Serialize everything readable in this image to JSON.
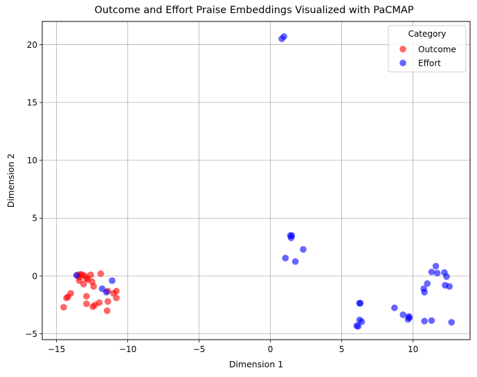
{
  "chart_data": {
    "type": "scatter",
    "title": "Outcome and Effort Praise Embeddings Visualized with PaCMAP",
    "xlabel": "Dimension 1",
    "ylabel": "Dimension 2",
    "xlim": [
      -16,
      14
    ],
    "ylim": [
      -5.5,
      22
    ],
    "xticks": [
      -15,
      -10,
      -5,
      0,
      5,
      10
    ],
    "yticks": [
      -5,
      0,
      5,
      10,
      15,
      20
    ],
    "grid": true,
    "legend": {
      "title": "Category",
      "placement": "top-right"
    },
    "series": [
      {
        "name": "Outcome",
        "color": "#ff0000",
        "points": [
          [
            -13.5,
            0.1
          ],
          [
            -13.3,
            0.15
          ],
          [
            -13.2,
            0.1
          ],
          [
            -13.4,
            -0.1
          ],
          [
            -13.0,
            0.0
          ],
          [
            -12.6,
            0.1
          ],
          [
            -12.9,
            -0.2
          ],
          [
            -11.9,
            0.2
          ],
          [
            -13.4,
            -0.4
          ],
          [
            -12.8,
            -0.3
          ],
          [
            -12.5,
            -0.5
          ],
          [
            -13.1,
            -0.7
          ],
          [
            -12.4,
            -0.9
          ],
          [
            -14.0,
            -1.5
          ],
          [
            -11.4,
            -1.3
          ],
          [
            -11.0,
            -1.5
          ],
          [
            -10.8,
            -1.3
          ],
          [
            -14.2,
            -1.8
          ],
          [
            -14.3,
            -1.9
          ],
          [
            -12.9,
            -1.75
          ],
          [
            -11.4,
            -2.2
          ],
          [
            -10.8,
            -1.9
          ],
          [
            -12.0,
            -2.3
          ],
          [
            -12.9,
            -2.4
          ],
          [
            -12.3,
            -2.5
          ],
          [
            -12.45,
            -2.65
          ],
          [
            -14.5,
            -2.7
          ],
          [
            -11.45,
            -3.0
          ]
        ]
      },
      {
        "name": "Effort",
        "color": "#0000ff",
        "points": [
          [
            0.8,
            20.5
          ],
          [
            0.95,
            20.7
          ],
          [
            1.4,
            3.5
          ],
          [
            1.5,
            3.5
          ],
          [
            1.45,
            3.3
          ],
          [
            2.3,
            2.3
          ],
          [
            1.05,
            1.55
          ],
          [
            1.75,
            1.25
          ],
          [
            -13.6,
            0.05
          ],
          [
            -11.1,
            -0.4
          ],
          [
            -11.8,
            -1.1
          ],
          [
            -11.5,
            -1.4
          ],
          [
            11.6,
            0.85
          ],
          [
            11.3,
            0.35
          ],
          [
            11.7,
            0.25
          ],
          [
            12.2,
            0.3
          ],
          [
            12.35,
            -0.05
          ],
          [
            12.25,
            -0.8
          ],
          [
            12.55,
            -0.9
          ],
          [
            11.0,
            -0.65
          ],
          [
            10.75,
            -1.1
          ],
          [
            10.8,
            -1.4
          ],
          [
            6.25,
            -2.35
          ],
          [
            6.3,
            -2.35
          ],
          [
            8.7,
            -2.75
          ],
          [
            9.3,
            -3.35
          ],
          [
            9.7,
            -3.5
          ],
          [
            9.75,
            -3.6
          ],
          [
            9.65,
            -3.75
          ],
          [
            6.25,
            -3.8
          ],
          [
            6.4,
            -3.95
          ],
          [
            10.8,
            -3.9
          ],
          [
            11.3,
            -3.85
          ],
          [
            12.7,
            -4.0
          ],
          [
            6.05,
            -4.3
          ],
          [
            6.15,
            -4.35
          ]
        ]
      }
    ]
  }
}
